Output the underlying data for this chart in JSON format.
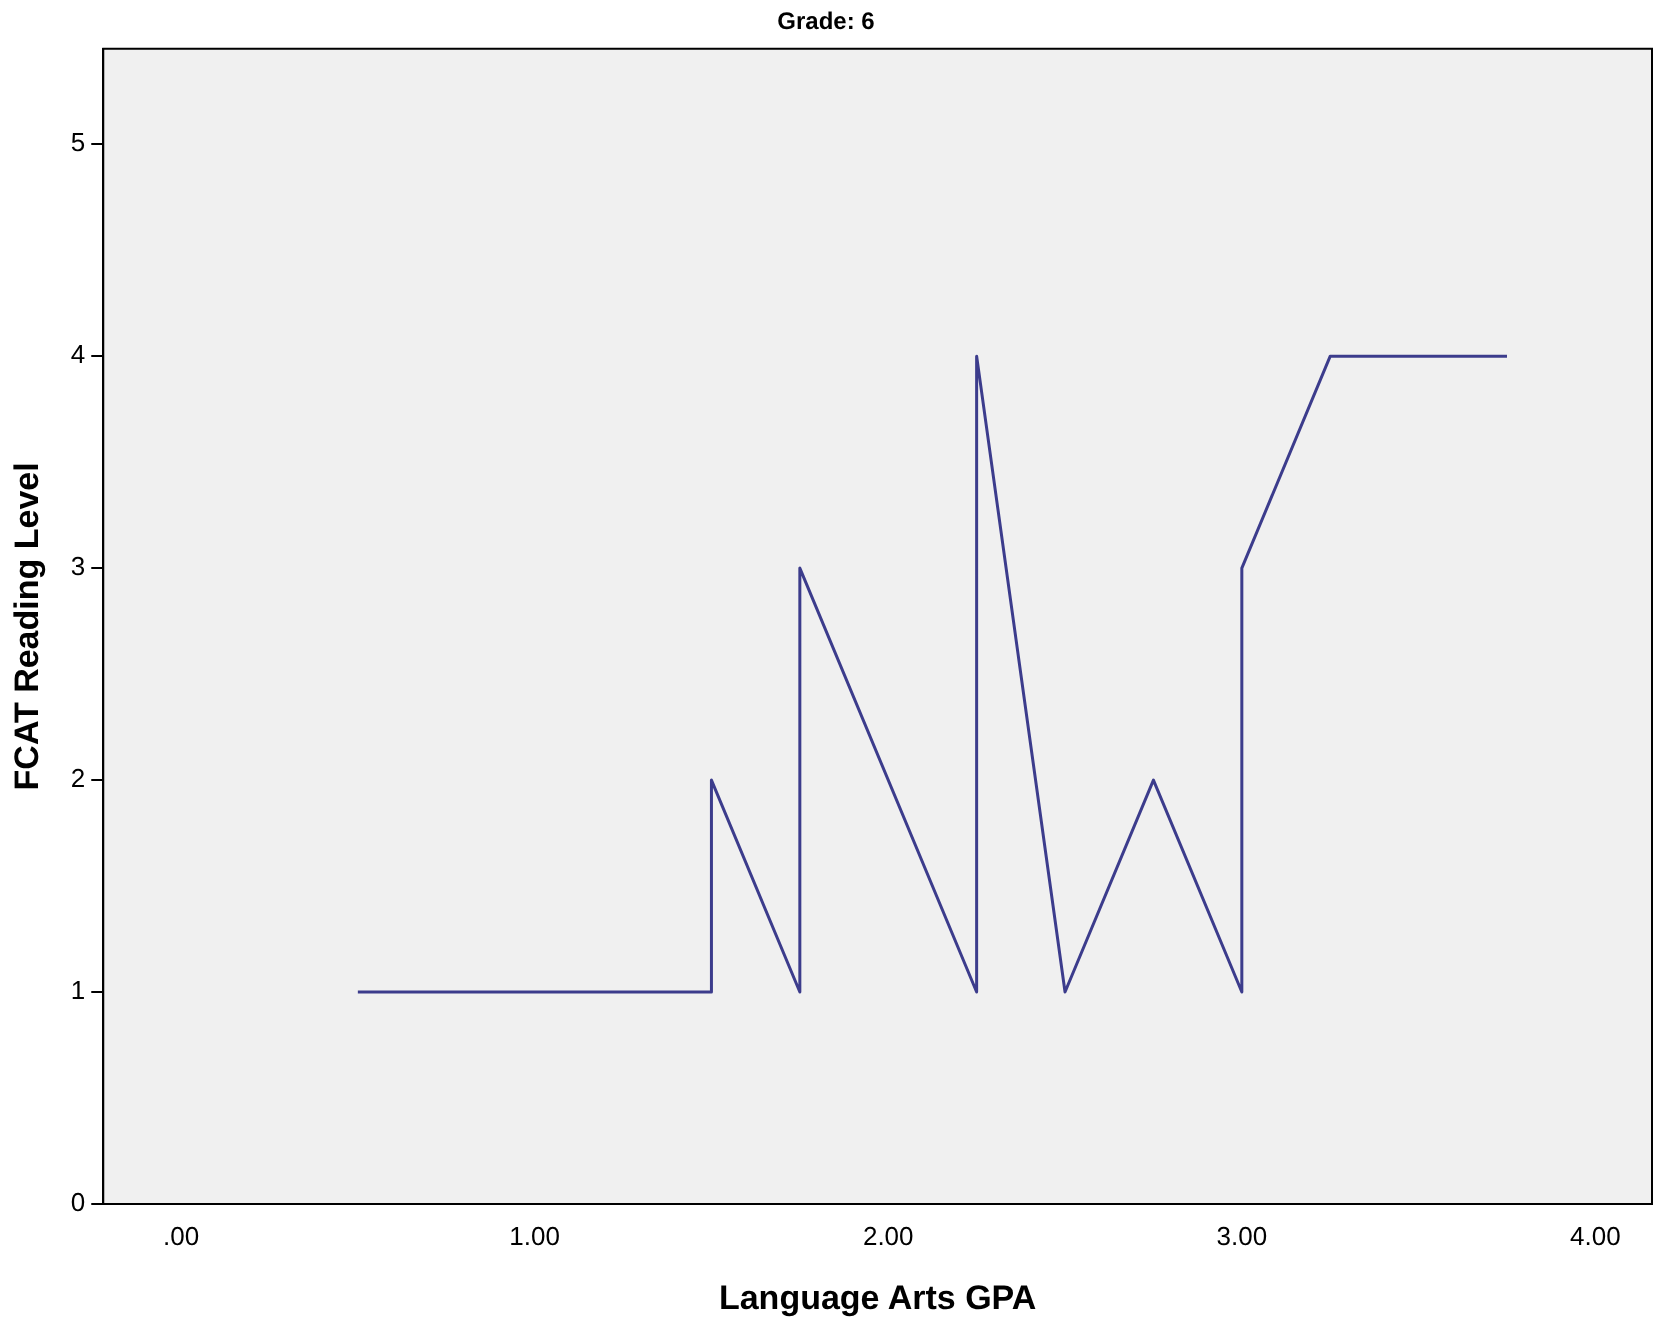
{
  "chart_data": {
    "type": "line",
    "title": "Grade: 6",
    "xlabel": "Language Arts GPA",
    "ylabel": "FCAT Reading Level",
    "x": [
      0.5,
      1.5,
      1.5,
      1.75,
      1.75,
      2.25,
      2.25,
      2.5,
      2.75,
      3.0,
      3.0,
      3.25,
      3.75
    ],
    "series": [
      {
        "color": "#3c3c8c",
        "values": [
          1,
          1,
          2,
          1,
          3,
          1,
          4,
          1,
          2,
          1,
          3,
          4,
          4
        ]
      }
    ],
    "xlim": [
      -0.22,
      4.16
    ],
    "xticks": [
      {
        "value": 0,
        "label": ".00"
      },
      {
        "value": 1,
        "label": "1.00"
      },
      {
        "value": 2,
        "label": "2.00"
      },
      {
        "value": 3,
        "label": "3.00"
      },
      {
        "value": 4,
        "label": "4.00"
      }
    ],
    "ylim": [
      0,
      5.45
    ],
    "yticks": [
      0,
      1,
      2,
      3,
      4,
      5
    ],
    "grid": false,
    "legend": false,
    "marker": "none",
    "line_style": "solid"
  }
}
